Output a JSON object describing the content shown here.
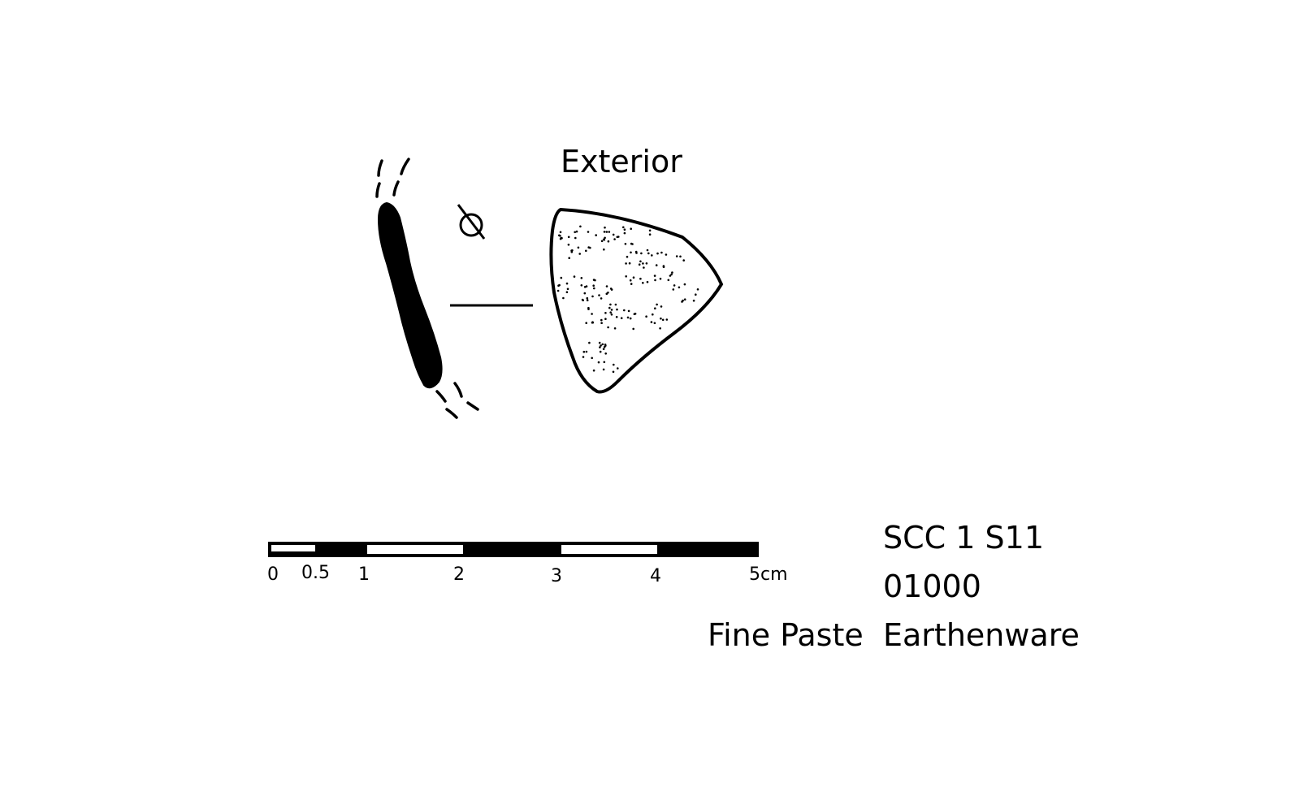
{
  "view_label": "Exterior",
  "scale_bar": {
    "ticks": [
      "0",
      "0.5",
      "1",
      "2",
      "3",
      "4",
      "5cm"
    ]
  },
  "catalog": {
    "site_code": "SCC 1 S11",
    "number": "01000",
    "material": "Fine Paste",
    "type": "Earthenware"
  }
}
